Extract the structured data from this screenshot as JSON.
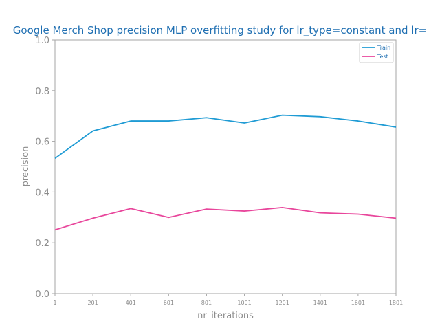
{
  "chart_data": {
    "type": "line",
    "title": "Google Merch Shop precision MLP overfitting study for lr_type=constant and lr=",
    "xlabel": "nr_iterations",
    "ylabel": "precision",
    "x": [
      1,
      201,
      401,
      601,
      801,
      1001,
      1201,
      1401,
      1601,
      1801
    ],
    "x_tick_labels": [
      "1",
      "201",
      "401",
      "601",
      "801",
      "1001",
      "1201",
      "1401",
      "1601",
      "1801"
    ],
    "y_tick_labels": [
      "0.0",
      "0.2",
      "0.4",
      "0.6",
      "0.8",
      "1.0"
    ],
    "xlim": [
      1,
      1801
    ],
    "ylim": [
      0.0,
      1.0
    ],
    "grid": false,
    "legend_position": "top-right",
    "series": [
      {
        "name": "Train",
        "color": "#1f9bd4",
        "values": [
          0.533,
          0.641,
          0.68,
          0.68,
          0.693,
          0.672,
          0.703,
          0.697,
          0.68,
          0.656
        ]
      },
      {
        "name": "Test",
        "color": "#e8459b",
        "values": [
          0.251,
          0.297,
          0.335,
          0.3,
          0.333,
          0.325,
          0.339,
          0.318,
          0.313,
          0.297
        ]
      }
    ]
  }
}
